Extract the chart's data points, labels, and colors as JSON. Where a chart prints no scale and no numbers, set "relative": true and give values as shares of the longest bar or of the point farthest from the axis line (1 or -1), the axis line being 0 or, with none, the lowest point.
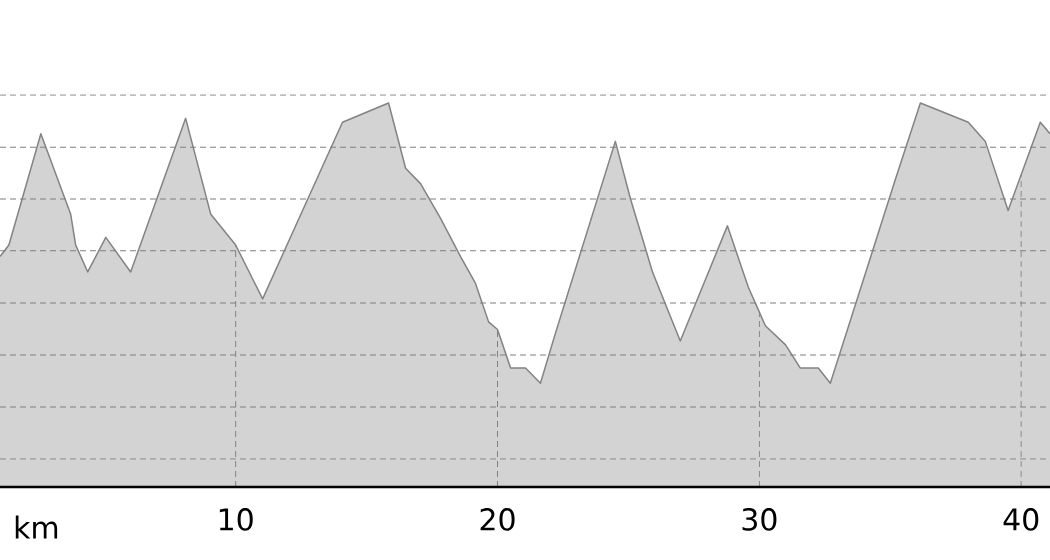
{
  "chart_data": {
    "type": "area",
    "relative": true,
    "xlabel": "km",
    "color": "#d3d3d3",
    "grid": true,
    "x": [
      1.0,
      1.34,
      2.56,
      3.7,
      3.89,
      4.35,
      5.04,
      5.99,
      8.09,
      9.05,
      10.0,
      11.03,
      14.08,
      15.84,
      16.49,
      17.06,
      17.82,
      18.59,
      19.16,
      19.66,
      20.0,
      20.5,
      21.07,
      21.64,
      22.21,
      24.5,
      25.08,
      25.92,
      26.98,
      28.78,
      29.58,
      30.23,
      31.0,
      31.56,
      32.25,
      32.71,
      35.19,
      36.15,
      37.98,
      38.63,
      39.5,
      40.73,
      41.1
    ],
    "values": [
      0.6,
      0.63,
      0.92,
      0.71,
      0.63,
      0.56,
      0.65,
      0.56,
      0.96,
      0.71,
      0.63,
      0.49,
      0.95,
      1.0,
      0.83,
      0.79,
      0.7,
      0.6,
      0.53,
      0.43,
      0.41,
      0.31,
      0.31,
      0.27,
      0.4,
      0.9,
      0.75,
      0.56,
      0.38,
      0.68,
      0.52,
      0.42,
      0.37,
      0.31,
      0.31,
      0.27,
      0.8,
      1.0,
      0.95,
      0.9,
      0.72,
      0.95,
      0.92
    ],
    "xlim": [
      1.0,
      41.1
    ],
    "xticks": [
      10,
      20,
      30,
      40
    ]
  }
}
